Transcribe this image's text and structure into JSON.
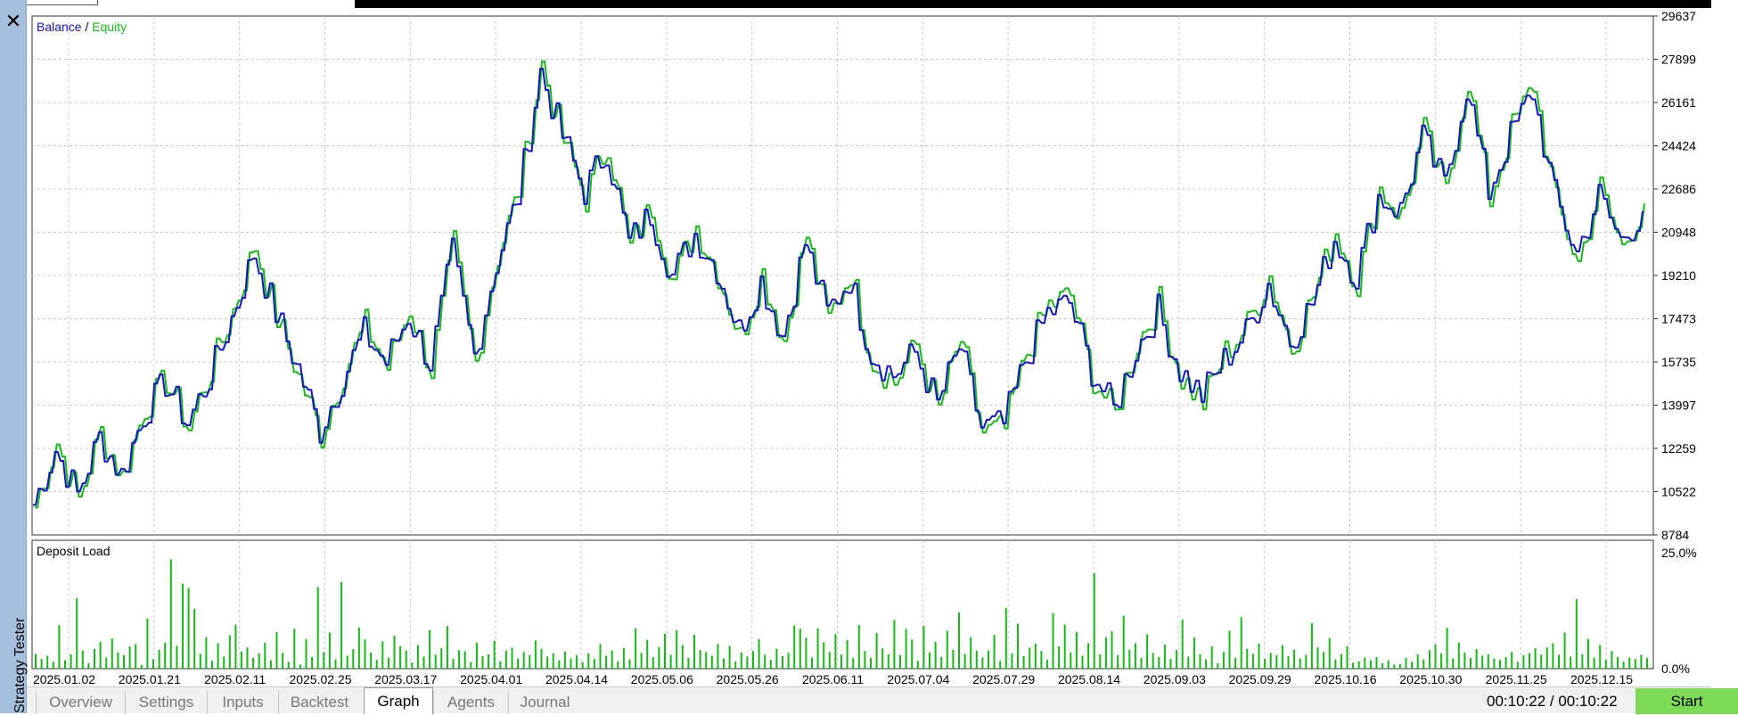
{
  "window": {
    "side_panel_label": "Strategy Tester",
    "close_glyph": "✕",
    "close_icon": "close-icon"
  },
  "chart": {
    "legend": {
      "balance": "Balance",
      "separator": " / ",
      "equity": "Equity"
    },
    "subchart_title": "Deposit Load",
    "colors": {
      "balance": "#1313c8",
      "equity": "#18b818",
      "bars": "#18b818",
      "grid": "#c8c8c8"
    }
  },
  "chart_data": [
    {
      "type": "line",
      "title": "",
      "series": [
        {
          "name": "Balance",
          "values": [
            10000,
            12200,
            10400,
            12700,
            11200,
            13600,
            14900,
            13300,
            15100,
            17500,
            20100,
            17700,
            15500,
            13000,
            15000,
            16900,
            15700,
            17600,
            15700,
            20100,
            16000,
            19700,
            22400,
            27400,
            24800,
            22600,
            24300,
            20500,
            21700,
            19200,
            20900,
            19500,
            17000,
            19000,
            16800,
            20500,
            17700,
            19100,
            16100,
            15200,
            16100,
            14000,
            16300,
            13100,
            13200,
            15800,
            17700,
            18100,
            15400,
            13800,
            16200,
            17800,
            15400,
            14400,
            15800,
            16900,
            18900,
            16600,
            18100,
            20700,
            19200,
            22400,
            21800,
            24700,
            22800,
            26800,
            22600,
            24800,
            26600,
            22400,
            20100,
            22400,
            20600,
            21800
          ]
        },
        {
          "name": "Equity",
          "values": [
            9900,
            12500,
            10200,
            12900,
            11100,
            13900,
            15000,
            13100,
            15400,
            17800,
            20400,
            17500,
            15100,
            12800,
            15300,
            17200,
            15500,
            17900,
            15400,
            20400,
            15700,
            20000,
            22700,
            27700,
            24600,
            22300,
            24600,
            20300,
            22000,
            19000,
            21200,
            19300,
            16700,
            19300,
            16600,
            20800,
            17400,
            19400,
            15800,
            14900,
            16400,
            13800,
            16600,
            12900,
            13000,
            16100,
            18000,
            18400,
            15100,
            13600,
            16500,
            18100,
            15100,
            14100,
            16100,
            17200,
            19200,
            16300,
            18400,
            21000,
            18900,
            22700,
            21600,
            25000,
            22500,
            27100,
            22300,
            25100,
            26900,
            22100,
            19700,
            22700,
            20300,
            22100
          ]
        }
      ],
      "x_tick_labels": [
        "2025.01.02",
        "2025.01.21",
        "2025.02.11",
        "2025.02.25",
        "2025.03.17",
        "2025.04.01",
        "2025.04.14",
        "2025.05.06",
        "2025.05.26",
        "2025.06.11",
        "2025.07.04",
        "2025.07.29",
        "2025.08.14",
        "2025.09.03",
        "2025.09.29",
        "2025.10.16",
        "2025.10.30",
        "2025.11.25",
        "2025.12.15"
      ],
      "y_tick_labels": [
        "29637",
        "27899",
        "26161",
        "24424",
        "22686",
        "20948",
        "19210",
        "17473",
        "15735",
        "13997",
        "12259",
        "10522",
        "8784"
      ],
      "ylim": [
        8784,
        29637
      ],
      "grid": true,
      "legend": "top-left"
    },
    {
      "type": "bar",
      "title": "Deposit Load",
      "y_tick_labels": [
        "25.0%",
        "0.0%"
      ],
      "ylim": [
        0,
        25
      ],
      "series": [
        {
          "name": "",
          "values": [
            3.2,
            2.1,
            2.8,
            1.5,
            9.4,
            1.8,
            3.1,
            15.2,
            3.9,
            1.2,
            4.3,
            5.8,
            2.4,
            6.5,
            3.5,
            2.9,
            4.8,
            5.3,
            0.8,
            10.8,
            2.0,
            4.1,
            5.6,
            23.6,
            4.9,
            18.3,
            17.4,
            12.9,
            3.2,
            6.8,
            1.7,
            5.5,
            2.6,
            7.2,
            9.5,
            3.7,
            4.6,
            2.3,
            3.3,
            5.6,
            1.8,
            7.9,
            3.4,
            1.5,
            8.6,
            0.9,
            6.4,
            2.5,
            17.6,
            3.6,
            7.8,
            2.0,
            18.7,
            2.8,
            4.2,
            8.9,
            6.3,
            3.5,
            1.9,
            5.9,
            2.4,
            7.1,
            4.8,
            3.9,
            1.3,
            5.1,
            2.6,
            8.3,
            3.0,
            4.4,
            9.2,
            2.1,
            4.0,
            3.7,
            1.4,
            5.6,
            2.7,
            3.1,
            6.0,
            1.6,
            3.9,
            4.5,
            2.2,
            3.6,
            2.9,
            6.1,
            4.3,
            2.6,
            3.3,
            1.8,
            3.7,
            2.2,
            2.9,
            1.4,
            3.3,
            2.1,
            5.3,
            2.8,
            3.9,
            1.6,
            4.4,
            2.0,
            8.7,
            3.4,
            6.2,
            2.5,
            4.7,
            7.5,
            3.0,
            8.3,
            5.1,
            2.3,
            7.3,
            4.0,
            3.6,
            2.8,
            5.3,
            2.2,
            4.9,
            1.5,
            3.5,
            2.6,
            3.8,
            6.4,
            3.0,
            1.9,
            4.3,
            2.7,
            3.4,
            9.3,
            8.6,
            6.7,
            2.4,
            8.7,
            5.7,
            3.6,
            7.5,
            3.0,
            6.2,
            2.3,
            9.4,
            3.8,
            2.3,
            7.7,
            4.4,
            3.1,
            10.5,
            2.9,
            8.6,
            6.3,
            1.7,
            9.2,
            3.5,
            5.8,
            2.5,
            8.2,
            4.1,
            12.1,
            3.2,
            6.8,
            3.9,
            2.4,
            3.9,
            7.3,
            1.7,
            13.1,
            3.3,
            9.7,
            2.7,
            4.5,
            5.4,
            3.8,
            1.9,
            12.0,
            4.8,
            9.5,
            3.5,
            7.9,
            2.8,
            5.5,
            20.6,
            3.1,
            6.8,
            8.1,
            2.9,
            11.4,
            4.1,
            5.5,
            2.3,
            7.4,
            3.4,
            2.5,
            5.2,
            2.1,
            4.0,
            10.6,
            2.6,
            6.7,
            3.1,
            2.0,
            4.8,
            1.2,
            3.6,
            8.2,
            2.3,
            11.1,
            4.3,
            3.2,
            5.4,
            2.1,
            3.4,
            2.9,
            5.1,
            2.7,
            4.1,
            2.2,
            3.0,
            9.8,
            4.6,
            3.6,
            6.6,
            2.0,
            3.2,
            4.9,
            1.3,
            1.6,
            2.4,
            1.8,
            2.5,
            1.2,
            1.8,
            0.9,
            1.0,
            2.3,
            1.5,
            3.1,
            2.0,
            4.0,
            5.2,
            3.3,
            8.8,
            2.2,
            5.6,
            3.5,
            2.3,
            4.2,
            2.8,
            3.1,
            2.2,
            1.9,
            2.5,
            3.6,
            1.5,
            2.9,
            3.3,
            4.4,
            3.0,
            4.6,
            5.5,
            3.0,
            7.8,
            2.6,
            15.0,
            3.1,
            6.4,
            2.4,
            5.1,
            1.9,
            3.8,
            2.5,
            1.5,
            2.4,
            2.1,
            3.0,
            2.3
          ]
        }
      ],
      "grid": true
    }
  ],
  "tabs": [
    {
      "label": "Overview"
    },
    {
      "label": "Settings"
    },
    {
      "label": "Inputs"
    },
    {
      "label": "Backtest"
    },
    {
      "label": "Graph"
    },
    {
      "label": "Agents"
    },
    {
      "label": "Journal"
    }
  ],
  "status": {
    "timer": "00:10:22 / 00:10:22",
    "start_label": "Start"
  }
}
